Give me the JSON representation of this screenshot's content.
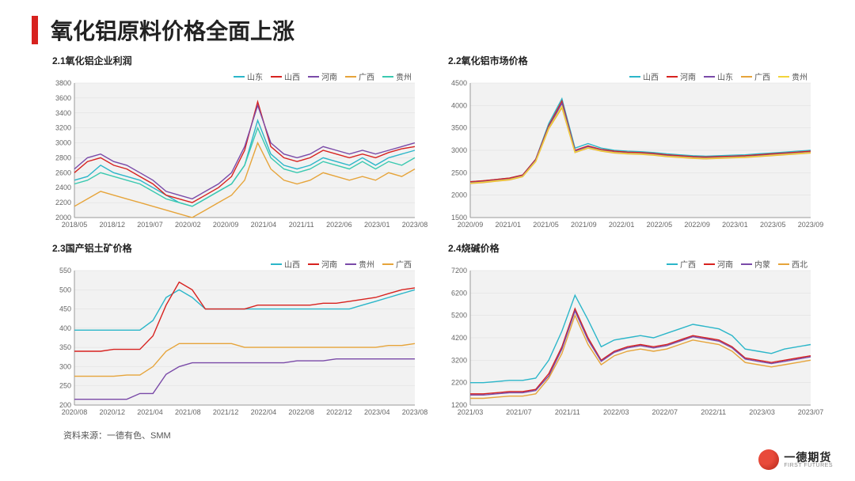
{
  "accent_color": "#d7221f",
  "page_title": "氧化铝原料价格全面上涨",
  "source_line": "资料来源：一德有色、SMM",
  "logo": {
    "cn": "一德期货",
    "en": "FIRST FUTURES"
  },
  "panel_fontsize": 12,
  "tick_fontsize": 9,
  "legend_fontsize": 10,
  "line_width": 1.4,
  "plot_bg": "#f2f2f2",
  "grid_color": "#dddddd",
  "charts": [
    {
      "id": "c21",
      "title": "2.1氧化铝企业利润",
      "ylim": [
        2000,
        3800
      ],
      "ytick_step": 200,
      "xlabels": [
        "2018/05",
        "2018/12",
        "2019/07",
        "2020/02",
        "2020/09",
        "2021/04",
        "2021/11",
        "2022/06",
        "2023/01",
        "2023/08"
      ],
      "series": [
        {
          "name": "山东",
          "color": "#2bb6c9",
          "y": [
            2500,
            2550,
            2700,
            2600,
            2550,
            2500,
            2400,
            2300,
            2200,
            2150,
            2250,
            2350,
            2450,
            2700,
            3300,
            2850,
            2700,
            2650,
            2700,
            2800,
            2750,
            2700,
            2800,
            2700,
            2800,
            2850,
            2900
          ]
        },
        {
          "name": "山西",
          "color": "#d7221f",
          "y": [
            2600,
            2750,
            2800,
            2700,
            2650,
            2550,
            2450,
            2300,
            2250,
            2200,
            2300,
            2400,
            2550,
            2900,
            3550,
            2950,
            2800,
            2750,
            2800,
            2900,
            2850,
            2800,
            2850,
            2800,
            2870,
            2920,
            2950
          ]
        },
        {
          "name": "河南",
          "color": "#7a4aa8",
          "y": [
            2650,
            2800,
            2850,
            2750,
            2700,
            2600,
            2500,
            2350,
            2300,
            2250,
            2350,
            2450,
            2600,
            2950,
            3500,
            3000,
            2850,
            2800,
            2850,
            2950,
            2900,
            2850,
            2900,
            2850,
            2900,
            2950,
            3000
          ]
        },
        {
          "name": "广西",
          "color": "#e6a43a",
          "y": [
            2150,
            2250,
            2350,
            2300,
            2250,
            2200,
            2150,
            2100,
            2050,
            2000,
            2100,
            2200,
            2300,
            2500,
            3000,
            2650,
            2500,
            2450,
            2500,
            2600,
            2550,
            2500,
            2550,
            2500,
            2600,
            2550,
            2650
          ]
        },
        {
          "name": "贵州",
          "color": "#3ac9b0",
          "y": [
            2450,
            2500,
            2600,
            2550,
            2500,
            2450,
            2350,
            2250,
            2200,
            2150,
            2250,
            2350,
            2450,
            2700,
            3200,
            2800,
            2650,
            2600,
            2650,
            2750,
            2700,
            2650,
            2750,
            2650,
            2750,
            2700,
            2800
          ]
        }
      ]
    },
    {
      "id": "c22",
      "title": "2.2氧化铝市场价格",
      "ylim": [
        1500,
        4500
      ],
      "ytick_step": 500,
      "xlabels": [
        "2020/09",
        "2021/01",
        "2021/05",
        "2021/09",
        "2022/01",
        "2022/05",
        "2022/09",
        "2023/01",
        "2023/05",
        "2023/09"
      ],
      "series": [
        {
          "name": "山西",
          "color": "#2bb6c9",
          "y": [
            2300,
            2320,
            2350,
            2380,
            2450,
            2800,
            3600,
            4150,
            3050,
            3150,
            3050,
            3000,
            2980,
            2970,
            2950,
            2920,
            2900,
            2880,
            2870,
            2880,
            2890,
            2900,
            2920,
            2940,
            2960,
            2980,
            3000
          ]
        },
        {
          "name": "河南",
          "color": "#d7221f",
          "y": [
            2300,
            2320,
            2350,
            2380,
            2450,
            2800,
            3550,
            4100,
            3000,
            3100,
            3020,
            2980,
            2960,
            2950,
            2930,
            2900,
            2880,
            2860,
            2850,
            2860,
            2870,
            2880,
            2900,
            2920,
            2940,
            2960,
            2980
          ]
        },
        {
          "name": "山东",
          "color": "#7a4aa8",
          "y": [
            2280,
            2300,
            2330,
            2360,
            2430,
            2780,
            3520,
            4050,
            2980,
            3080,
            3000,
            2960,
            2940,
            2930,
            2910,
            2880,
            2860,
            2840,
            2830,
            2840,
            2850,
            2860,
            2880,
            2900,
            2920,
            2940,
            2960
          ]
        },
        {
          "name": "广西",
          "color": "#e6a43a",
          "y": [
            2260,
            2280,
            2310,
            2340,
            2410,
            2750,
            3480,
            3950,
            2950,
            3050,
            2980,
            2940,
            2920,
            2910,
            2890,
            2860,
            2840,
            2820,
            2810,
            2820,
            2830,
            2840,
            2860,
            2880,
            2900,
            2920,
            2940
          ]
        },
        {
          "name": "贵州",
          "color": "#f2d43a",
          "y": [
            2270,
            2290,
            2320,
            2350,
            2420,
            2760,
            3500,
            3980,
            2960,
            3060,
            2990,
            2950,
            2930,
            2920,
            2900,
            2870,
            2850,
            2830,
            2820,
            2830,
            2840,
            2850,
            2870,
            2890,
            2910,
            2930,
            2950
          ]
        }
      ]
    },
    {
      "id": "c23",
      "title": "2.3国产铝土矿价格",
      "ylim": [
        200,
        550
      ],
      "ytick_step": 50,
      "xlabels": [
        "2020/08",
        "2020/12",
        "2021/04",
        "2021/08",
        "2021/12",
        "2022/04",
        "2022/08",
        "2022/12",
        "2023/04",
        "2023/08"
      ],
      "series": [
        {
          "name": "山西",
          "color": "#2bb6c9",
          "y": [
            395,
            395,
            395,
            395,
            395,
            395,
            420,
            480,
            500,
            480,
            450,
            450,
            450,
            450,
            450,
            450,
            450,
            450,
            450,
            450,
            450,
            450,
            460,
            470,
            480,
            490,
            500
          ]
        },
        {
          "name": "河南",
          "color": "#d7221f",
          "y": [
            340,
            340,
            340,
            345,
            345,
            345,
            380,
            460,
            520,
            500,
            450,
            450,
            450,
            450,
            460,
            460,
            460,
            460,
            460,
            465,
            465,
            470,
            475,
            480,
            490,
            500,
            505
          ]
        },
        {
          "name": "贵州",
          "color": "#7a4aa8",
          "y": [
            215,
            215,
            215,
            215,
            215,
            230,
            230,
            280,
            300,
            310,
            310,
            310,
            310,
            310,
            310,
            310,
            310,
            315,
            315,
            315,
            320,
            320,
            320,
            320,
            320,
            320,
            320
          ]
        },
        {
          "name": "广西",
          "color": "#e6a43a",
          "y": [
            275,
            275,
            275,
            275,
            278,
            278,
            300,
            340,
            360,
            360,
            360,
            360,
            360,
            350,
            350,
            350,
            350,
            350,
            350,
            350,
            350,
            350,
            350,
            350,
            355,
            355,
            360
          ]
        }
      ]
    },
    {
      "id": "c24",
      "title": "2.4烧碱价格",
      "ylim": [
        1200,
        7200
      ],
      "ytick_step": 1000,
      "xlabels": [
        "2021/03",
        "2021/07",
        "2021/11",
        "2022/03",
        "2022/07",
        "2022/11",
        "2023/03",
        "2023/07"
      ],
      "series": [
        {
          "name": "广西",
          "color": "#2bb6c9",
          "y": [
            2200,
            2200,
            2250,
            2300,
            2300,
            2400,
            3200,
            4500,
            6100,
            5000,
            3800,
            4100,
            4200,
            4300,
            4200,
            4400,
            4600,
            4800,
            4700,
            4600,
            4300,
            3700,
            3600,
            3500,
            3700,
            3800,
            3900
          ]
        },
        {
          "name": "河南",
          "color": "#d7221f",
          "y": [
            1700,
            1700,
            1750,
            1800,
            1800,
            1900,
            2600,
            3800,
            5500,
            4200,
            3200,
            3600,
            3800,
            3900,
            3800,
            3900,
            4100,
            4300,
            4200,
            4100,
            3800,
            3300,
            3200,
            3100,
            3200,
            3300,
            3400
          ]
        },
        {
          "name": "内蒙",
          "color": "#7a4aa8",
          "y": [
            1650,
            1650,
            1700,
            1750,
            1750,
            1850,
            2500,
            3700,
            5400,
            4100,
            3150,
            3550,
            3750,
            3850,
            3750,
            3850,
            4050,
            4250,
            4150,
            4050,
            3750,
            3250,
            3150,
            3050,
            3150,
            3250,
            3350
          ]
        },
        {
          "name": "西北",
          "color": "#e6a43a",
          "y": [
            1500,
            1500,
            1550,
            1600,
            1600,
            1700,
            2400,
            3500,
            5200,
            3900,
            3000,
            3400,
            3600,
            3700,
            3600,
            3700,
            3900,
            4100,
            4000,
            3900,
            3600,
            3100,
            3000,
            2900,
            3000,
            3100,
            3200
          ]
        }
      ]
    }
  ]
}
